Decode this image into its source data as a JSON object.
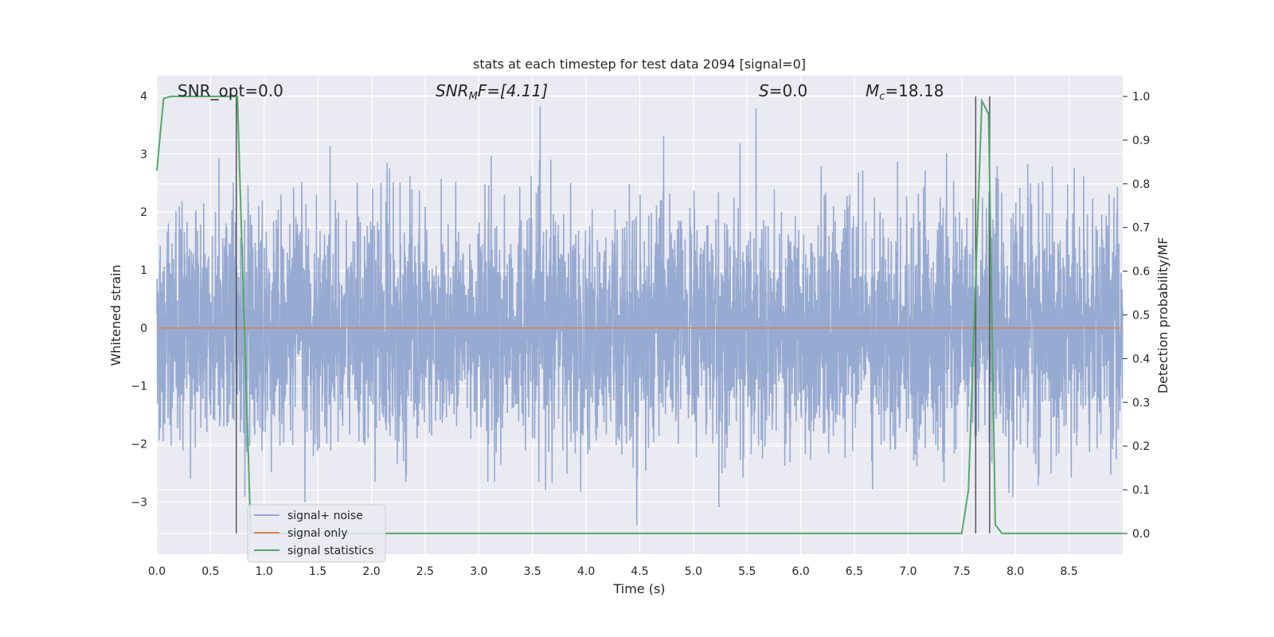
{
  "chart_data": {
    "type": "line",
    "title": "stats at each timestep for test data 2094 [signal=0]",
    "xlabel": "Time (s)",
    "ylabel": "Whitened strain",
    "y2label": "Detection probability/MF",
    "xlim": [
      0.0,
      9.0
    ],
    "ylim": [
      -3.9,
      4.35
    ],
    "y2lim": [
      -0.0475,
      1.0475
    ],
    "xticks": [
      0.0,
      0.5,
      1.0,
      1.5,
      2.0,
      2.5,
      3.0,
      3.5,
      4.0,
      4.5,
      5.0,
      5.5,
      6.0,
      6.5,
      7.0,
      7.5,
      8.0,
      8.5
    ],
    "xtick_labels": [
      "0.0",
      "0.5",
      "1.0",
      "1.5",
      "2.0",
      "2.5",
      "3.0",
      "3.5",
      "4.0",
      "4.5",
      "5.0",
      "5.5",
      "6.0",
      "6.5",
      "7.0",
      "7.5",
      "8.0",
      "8.5"
    ],
    "yticks": [
      -3,
      -2,
      -1,
      0,
      1,
      2,
      3,
      4
    ],
    "ytick_labels": [
      "−3",
      "−2",
      "−1",
      "0",
      "1",
      "2",
      "3",
      "4"
    ],
    "y2ticks": [
      0.0,
      0.1,
      0.2,
      0.3,
      0.4,
      0.5,
      0.6,
      0.7,
      0.8,
      0.9,
      1.0
    ],
    "y2tick_labels": [
      "0.0",
      "0.1",
      "0.2",
      "0.3",
      "0.4",
      "0.5",
      "0.6",
      "0.7",
      "0.8",
      "0.9",
      "1.0"
    ],
    "grid": true,
    "legend_position": "bottom-left",
    "annotations": {
      "snr_opt": "SNR_opt=0.0",
      "snr_mf_main": "SNR",
      "snr_mf_sub": "M",
      "snr_mf_tail": "F=[4.11]",
      "s_main": "S",
      "s_tail": "=0.0",
      "mc_main": "M",
      "mc_sub": "c",
      "mc_tail": "=18.18"
    },
    "series": [
      {
        "name": "signal+ noise",
        "color": "#92a6cf",
        "axis": "left",
        "description": "dense whitened noise trace",
        "envelope_approx": [
          -3.6,
          4.0
        ]
      },
      {
        "name": "signal only",
        "color": "#dd8452",
        "axis": "left",
        "x": [
          0.0,
          9.0
        ],
        "y": [
          0.0,
          0.0
        ]
      },
      {
        "name": "signal statistics",
        "color": "#55a868",
        "axis": "right",
        "x": [
          0.0,
          0.0625,
          0.125,
          0.1875,
          0.25,
          0.3125,
          0.375,
          0.4375,
          0.5,
          0.5625,
          0.625,
          0.6875,
          0.75,
          0.8125,
          0.875,
          0.9375,
          1.0,
          7.5,
          7.5625,
          7.625,
          7.6875,
          7.75,
          7.8125,
          7.875,
          8.0,
          8.5,
          9.0
        ],
        "y": [
          0.83,
          0.995,
          1.0,
          1.0,
          1.0,
          1.0,
          1.0,
          1.0,
          1.0,
          1.0,
          1.0,
          1.0,
          1.0,
          0.5,
          0.0,
          0.0,
          0.0,
          0.0,
          0.1,
          0.55,
          0.99,
          0.96,
          0.02,
          0.0,
          0.0,
          0.0,
          0.0
        ]
      }
    ],
    "vlines": [
      {
        "x": 0.74,
        "ymin": 0.0,
        "ymax": 1.0,
        "color": "#555555"
      },
      {
        "x": 7.63,
        "ymin": 0.0,
        "ymax": 1.0,
        "color": "#555555"
      },
      {
        "x": 7.76,
        "ymin": 0.0,
        "ymax": 1.0,
        "color": "#555555"
      }
    ],
    "colors": {
      "plot_bg": "#eaeaf2",
      "grid": "#ffffff",
      "text": "#262626"
    }
  }
}
